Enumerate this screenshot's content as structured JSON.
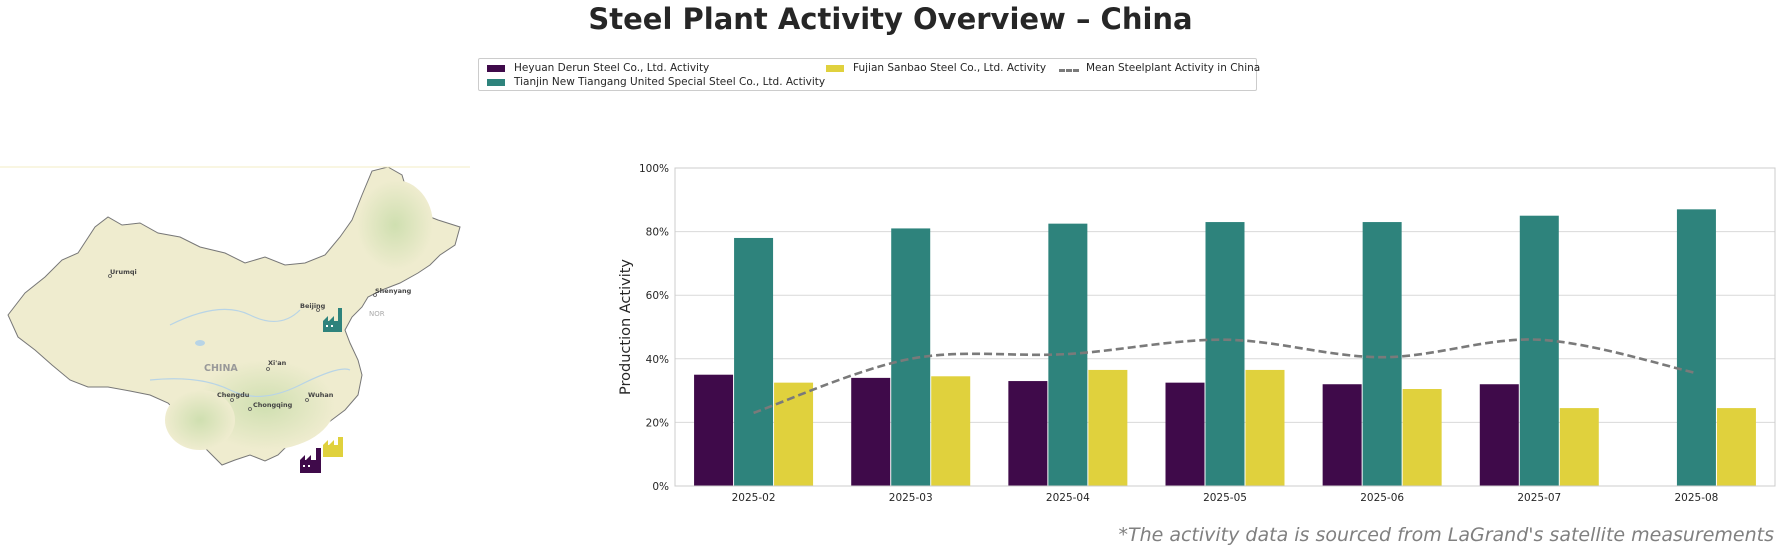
{
  "title": "Steel Plant Activity Overview – China",
  "legend": [
    {
      "label": "Heyuan Derun Steel Co., Ltd. Activity",
      "color": "#3f0a4a",
      "kind": "bar"
    },
    {
      "label": "Tianjin New Tiangang United Special Steel Co., Ltd. Activity",
      "color": "#2e837c",
      "kind": "bar"
    },
    {
      "label": "Fujian Sanbao Steel Co., Ltd. Activity",
      "color": "#e0d13d",
      "kind": "bar"
    },
    {
      "label": "Mean Steelplant Activity in China",
      "color": "#7a7a7a",
      "kind": "line"
    }
  ],
  "map": {
    "country_label": "CHINA",
    "cities": [
      "Urumqi",
      "Beijing",
      "Shenyang",
      "Xi'an",
      "Chengdu",
      "Chongqing",
      "Wuhan"
    ],
    "partial_label": "NOR",
    "markers": [
      {
        "name": "Tianjin plant",
        "color": "#2e837c"
      },
      {
        "name": "Heyuan plant",
        "color": "#3f0a4a"
      },
      {
        "name": "Fujian plant",
        "color": "#e0d13d"
      }
    ],
    "land_color": "#efeccf",
    "forest_color": "#d6e3b8"
  },
  "chart_data": {
    "type": "bar",
    "categories": [
      "2025-02",
      "2025-03",
      "2025-04",
      "2025-05",
      "2025-06",
      "2025-07",
      "2025-08"
    ],
    "series": [
      {
        "name": "Heyuan Derun Steel Co., Ltd. Activity",
        "color": "#3f0a4a",
        "values": [
          35,
          34,
          33,
          32.5,
          32,
          32,
          null
        ]
      },
      {
        "name": "Tianjin New Tiangang United Special Steel Co., Ltd. Activity",
        "color": "#2e837c",
        "values": [
          78,
          81,
          82.5,
          83,
          83,
          85,
          87
        ]
      },
      {
        "name": "Fujian Sanbao Steel Co., Ltd. Activity",
        "color": "#e0d13d",
        "values": [
          32.5,
          34.5,
          36.5,
          36.5,
          30.5,
          24.5,
          24.5
        ]
      }
    ],
    "line_series": {
      "name": "Mean Steelplant Activity in China",
      "color": "#7a7a7a",
      "values": [
        23,
        40,
        41.5,
        46,
        40.5,
        46,
        35.5
      ]
    },
    "ylabel": "Production Activity",
    "xlabel": "",
    "ylim": [
      0,
      100
    ],
    "yticks": [
      "0%",
      "20%",
      "40%",
      "60%",
      "80%",
      "100%"
    ],
    "ytick_values": [
      0,
      20,
      40,
      60,
      80,
      100
    ],
    "grid": "horizontal",
    "legend_position": "top-center"
  },
  "footnote": "*The activity data is sourced from LaGrand's satellite measurements"
}
